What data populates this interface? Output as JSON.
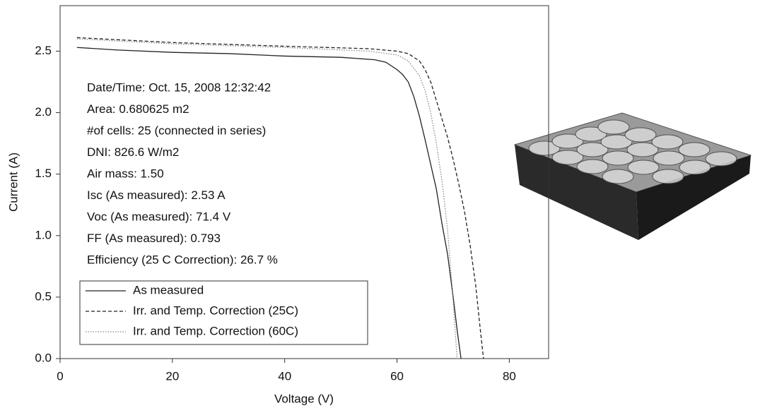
{
  "chart_data": {
    "type": "line",
    "xlabel": "Voltage (V)",
    "ylabel": "Current (A)",
    "xlim": [
      0,
      87
    ],
    "ylim": [
      0,
      2.87
    ],
    "xticks": [
      0,
      20,
      40,
      60,
      80
    ],
    "yticks": [
      {
        "value": 0,
        "label": "0.0"
      },
      {
        "value": 0.5,
        "label": "0.5"
      },
      {
        "value": 1,
        "label": "1.0"
      },
      {
        "value": 1.5,
        "label": "1.5"
      },
      {
        "value": 2,
        "label": "2.0"
      },
      {
        "value": 2.5,
        "label": "2.5"
      }
    ],
    "annotations": [
      "Date/Time: Oct. 15, 2008 12:32:42",
      "Area: 0.680625 m2",
      "#of cells: 25 (connected in series)",
      "DNI: 826.6 W/m2",
      "Air mass: 1.50",
      "Isc (As measured): 2.53 A",
      "Voc (As measured): 71.4 V",
      "FF (As measured): 0.793",
      "Efficiency (25 C Correction): 26.7 %"
    ],
    "legend": "lower left",
    "series": [
      {
        "name": "As measured",
        "color": "#222222",
        "dash": "solid",
        "x": [
          3,
          10,
          20,
          30,
          40,
          50,
          56,
          58,
          60,
          61,
          62,
          63,
          64,
          65,
          66,
          67,
          68,
          69,
          70,
          70.8,
          71.4
        ],
        "values": [
          2.53,
          2.51,
          2.49,
          2.48,
          2.46,
          2.45,
          2.43,
          2.41,
          2.35,
          2.31,
          2.25,
          2.13,
          1.97,
          1.78,
          1.58,
          1.38,
          1.1,
          0.85,
          0.5,
          0.2,
          0
        ]
      },
      {
        "name": "Irr. and Temp. Correction (25C)",
        "color": "#222222",
        "dash": "dashed",
        "x": [
          3,
          20,
          40,
          55,
          60,
          62,
          64,
          65,
          66,
          67,
          68,
          69,
          70,
          71,
          72,
          73,
          74,
          74.8,
          75.4
        ],
        "values": [
          2.61,
          2.57,
          2.54,
          2.52,
          2.5,
          2.48,
          2.42,
          2.35,
          2.25,
          2.1,
          1.95,
          1.8,
          1.62,
          1.42,
          1.2,
          0.93,
          0.6,
          0.25,
          0
        ]
      },
      {
        "name": "Irr. and Temp. Correction (60C)",
        "color": "#888888",
        "dash": "dotted",
        "x": [
          3,
          20,
          40,
          55,
          60,
          62,
          64,
          65,
          66,
          67,
          68,
          69,
          69.8,
          70.4,
          70.7
        ],
        "values": [
          2.6,
          2.56,
          2.53,
          2.5,
          2.47,
          2.42,
          2.3,
          2.18,
          2.0,
          1.75,
          1.45,
          1.05,
          0.6,
          0.2,
          0
        ]
      }
    ]
  }
}
